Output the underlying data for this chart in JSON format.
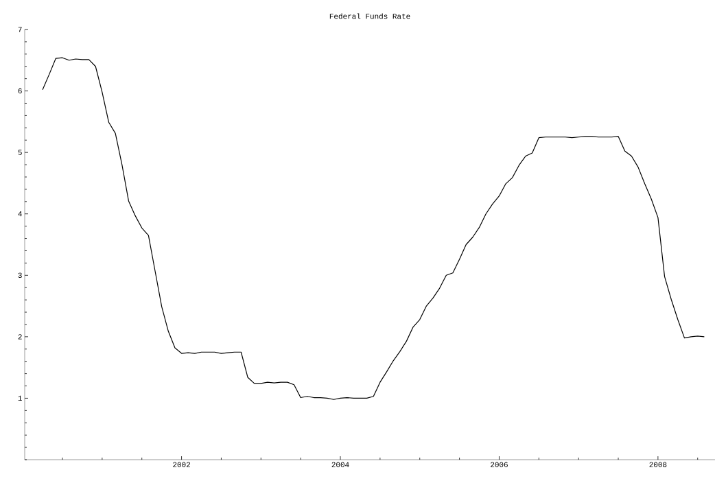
{
  "chart_data": {
    "type": "line",
    "title": "Federal Funds Rate",
    "x": [
      "2000-04",
      "2000-05",
      "2000-06",
      "2000-07",
      "2000-08",
      "2000-09",
      "2000-10",
      "2000-11",
      "2000-12",
      "2001-01",
      "2001-02",
      "2001-03",
      "2001-04",
      "2001-05",
      "2001-06",
      "2001-07",
      "2001-08",
      "2001-09",
      "2001-10",
      "2001-11",
      "2001-12",
      "2002-01",
      "2002-02",
      "2002-03",
      "2002-04",
      "2002-05",
      "2002-06",
      "2002-07",
      "2002-08",
      "2002-09",
      "2002-10",
      "2002-11",
      "2002-12",
      "2003-01",
      "2003-02",
      "2003-03",
      "2003-04",
      "2003-05",
      "2003-06",
      "2003-07",
      "2003-08",
      "2003-09",
      "2003-10",
      "2003-11",
      "2003-12",
      "2004-01",
      "2004-02",
      "2004-03",
      "2004-04",
      "2004-05",
      "2004-06",
      "2004-07",
      "2004-08",
      "2004-09",
      "2004-10",
      "2004-11",
      "2004-12",
      "2005-01",
      "2005-02",
      "2005-03",
      "2005-04",
      "2005-05",
      "2005-06",
      "2005-07",
      "2005-08",
      "2005-09",
      "2005-10",
      "2005-11",
      "2005-12",
      "2006-01",
      "2006-02",
      "2006-03",
      "2006-04",
      "2006-05",
      "2006-06",
      "2006-07",
      "2006-08",
      "2006-09",
      "2006-10",
      "2006-11",
      "2006-12",
      "2007-01",
      "2007-02",
      "2007-03",
      "2007-04",
      "2007-05",
      "2007-06",
      "2007-07",
      "2007-08",
      "2007-09",
      "2007-10",
      "2007-11",
      "2007-12",
      "2008-01",
      "2008-02",
      "2008-03",
      "2008-04",
      "2008-05",
      "2008-06",
      "2008-07",
      "2008-08"
    ],
    "values": [
      6.02,
      6.27,
      6.53,
      6.54,
      6.5,
      6.52,
      6.51,
      6.51,
      6.4,
      5.98,
      5.49,
      5.31,
      4.8,
      4.21,
      3.97,
      3.77,
      3.65,
      3.07,
      2.49,
      2.09,
      1.82,
      1.73,
      1.74,
      1.73,
      1.75,
      1.75,
      1.75,
      1.73,
      1.74,
      1.75,
      1.75,
      1.34,
      1.24,
      1.24,
      1.26,
      1.25,
      1.26,
      1.26,
      1.22,
      1.01,
      1.03,
      1.01,
      1.01,
      1.0,
      0.98,
      1.0,
      1.01,
      1.0,
      1.0,
      1.0,
      1.03,
      1.26,
      1.43,
      1.61,
      1.76,
      1.93,
      2.16,
      2.28,
      2.5,
      2.63,
      2.79,
      3.0,
      3.04,
      3.26,
      3.5,
      3.62,
      3.78,
      4.0,
      4.16,
      4.29,
      4.49,
      4.59,
      4.79,
      4.94,
      4.99,
      5.24,
      5.25,
      5.25,
      5.25,
      5.25,
      5.24,
      5.25,
      5.26,
      5.26,
      5.25,
      5.25,
      5.25,
      5.26,
      5.02,
      4.94,
      4.76,
      4.49,
      4.24,
      3.94,
      2.98,
      2.61,
      2.28,
      1.98,
      2.0,
      2.01,
      2.0
    ],
    "color": "#000000",
    "xlim": [
      "2000-01-10",
      "2008-09-20"
    ],
    "xticks": [
      "2002",
      "2004",
      "2006",
      "2008"
    ],
    "ylim": [
      0,
      7
    ],
    "yticks": [
      1,
      2,
      3,
      4,
      5,
      6,
      7
    ],
    "grid": false
  }
}
